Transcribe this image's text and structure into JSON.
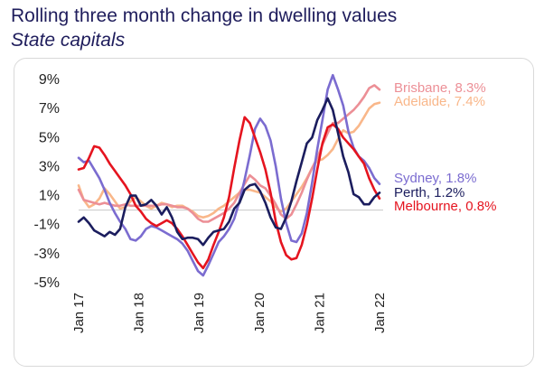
{
  "header": {
    "title": "Rolling three month change in dwelling values",
    "subtitle": "State capitals"
  },
  "chart_data": {
    "type": "line",
    "title": "Rolling three month change in dwelling values",
    "subtitle": "State capitals",
    "xlabel": "",
    "ylabel": "",
    "x_range": [
      "2017-01",
      "2022-01"
    ],
    "ylim": [
      -5,
      10
    ],
    "y_ticks": [
      9,
      7,
      5,
      3,
      1,
      -1,
      -3,
      -5
    ],
    "y_tick_labels": [
      "9%",
      "7%",
      "5%",
      "3%",
      "1%",
      "-1%",
      "-3%",
      "-5%"
    ],
    "x_tick_labels": [
      {
        "date": "2017-01",
        "label": "Jan 17"
      },
      {
        "date": "2018-01",
        "label": "Jan 18"
      },
      {
        "date": "2019-01",
        "label": "Jan 19"
      },
      {
        "date": "2020-01",
        "label": "Jan 20"
      },
      {
        "date": "2021-01",
        "label": "Jan 21"
      },
      {
        "date": "2022-01",
        "label": "Jan 22"
      }
    ],
    "zero_line": true,
    "grid": false,
    "legend": "end-of-line labels",
    "series": [
      {
        "name": "Sydney",
        "label": "Sydney, 1.8%",
        "color": "#7b6cd0",
        "values": [
          3.6,
          3.3,
          3.4,
          2.8,
          2.2,
          1.4,
          0.5,
          -0.2,
          -0.8,
          -1.3,
          -2.0,
          -2.1,
          -1.8,
          -1.3,
          -1.1,
          -1.2,
          -1.4,
          -1.6,
          -1.8,
          -2.0,
          -2.3,
          -2.8,
          -3.5,
          -4.2,
          -4.5,
          -3.8,
          -3.0,
          -2.2,
          -1.8,
          -1.3,
          -0.6,
          0.6,
          2.1,
          3.8,
          5.6,
          6.3,
          5.8,
          4.8,
          3.0,
          0.8,
          -0.9,
          -2.1,
          -2.2,
          -1.6,
          -0.2,
          1.9,
          4.2,
          6.2,
          8.3,
          9.3,
          8.3,
          7.2,
          5.4,
          4.3,
          3.7,
          3.4,
          2.9,
          2.2,
          1.8
        ]
      },
      {
        "name": "Melbourne",
        "label": "Melbourne, 0.8%",
        "color": "#e5141f",
        "values": [
          2.8,
          2.9,
          3.6,
          4.4,
          4.3,
          3.8,
          3.2,
          2.7,
          2.2,
          1.7,
          1.1,
          0.3,
          -0.1,
          -0.6,
          -0.9,
          -1.1,
          -0.9,
          -0.7,
          -0.9,
          -1.3,
          -1.8,
          -2.4,
          -3.0,
          -3.6,
          -4.0,
          -3.4,
          -2.4,
          -1.5,
          -0.5,
          0.9,
          2.9,
          4.8,
          6.4,
          6.0,
          5.0,
          4.0,
          2.8,
          1.2,
          -0.8,
          -2.2,
          -3.1,
          -3.4,
          -3.3,
          -2.4,
          -1.0,
          0.8,
          2.8,
          4.6,
          5.7,
          5.9,
          5.6,
          5.0,
          4.6,
          4.2,
          3.7,
          3.2,
          2.2,
          1.4,
          0.8
        ]
      },
      {
        "name": "Brisbane",
        "label": "Brisbane, 8.3%",
        "color": "#ec8f96",
        "values": [
          1.4,
          0.7,
          0.6,
          0.5,
          0.4,
          0.5,
          0.4,
          0.3,
          0.3,
          0.4,
          0.3,
          0.3,
          0.3,
          0.3,
          0.3,
          0.3,
          0.4,
          0.4,
          0.3,
          0.2,
          0.2,
          0.1,
          -0.2,
          -0.6,
          -0.8,
          -0.8,
          -0.6,
          -0.4,
          -0.2,
          0.1,
          0.5,
          1.2,
          1.8,
          2.4,
          2.1,
          1.7,
          1.5,
          1.0,
          0.4,
          -0.3,
          -0.6,
          -0.3,
          0.4,
          1.2,
          2.1,
          2.9,
          3.6,
          4.5,
          5.3,
          6.0,
          6.0,
          6.3,
          6.6,
          6.9,
          7.3,
          7.8,
          8.4,
          8.6,
          8.3
        ]
      },
      {
        "name": "Adelaide",
        "label": "Adelaide, 7.4%",
        "color": "#f9b78a",
        "values": [
          1.7,
          0.7,
          0.2,
          0.4,
          0.8,
          1.5,
          1.1,
          0.6,
          0.1,
          0.2,
          0.6,
          0.9,
          0.6,
          0.3,
          0.1,
          0.3,
          0.5,
          0.4,
          0.2,
          0.3,
          0.3,
          0.1,
          -0.1,
          -0.4,
          -0.5,
          -0.4,
          -0.2,
          0.1,
          0.3,
          0.6,
          0.9,
          1.2,
          1.4,
          1.4,
          1.3,
          1.2,
          0.9,
          0.6,
          0.2,
          -0.1,
          0.1,
          0.6,
          1.1,
          1.6,
          2.2,
          2.9,
          3.4,
          3.5,
          3.8,
          4.2,
          4.9,
          5.5,
          5.3,
          5.4,
          5.8,
          6.4,
          7.0,
          7.3,
          7.4
        ]
      },
      {
        "name": "Perth",
        "label": "Perth, 1.2%",
        "color": "#1b1d5e",
        "values": [
          -0.8,
          -0.5,
          -0.9,
          -1.4,
          -1.6,
          -1.8,
          -1.5,
          -1.7,
          -1.3,
          0.2,
          1.0,
          1.0,
          0.3,
          0.4,
          0.7,
          0.3,
          -0.3,
          0.2,
          -0.5,
          -1.5,
          -2.0,
          -1.9,
          -1.9,
          -2.0,
          -2.4,
          -1.9,
          -1.5,
          -1.4,
          -1.3,
          -0.8,
          0.1,
          0.5,
          1.4,
          1.7,
          1.8,
          1.3,
          0.5,
          -0.5,
          -1.2,
          -1.3,
          -0.5,
          0.6,
          2.0,
          3.3,
          4.6,
          5.0,
          6.2,
          6.9,
          7.7,
          6.9,
          5.3,
          3.7,
          2.6,
          1.1,
          0.9,
          0.4,
          0.4,
          0.9,
          1.2
        ]
      }
    ]
  }
}
